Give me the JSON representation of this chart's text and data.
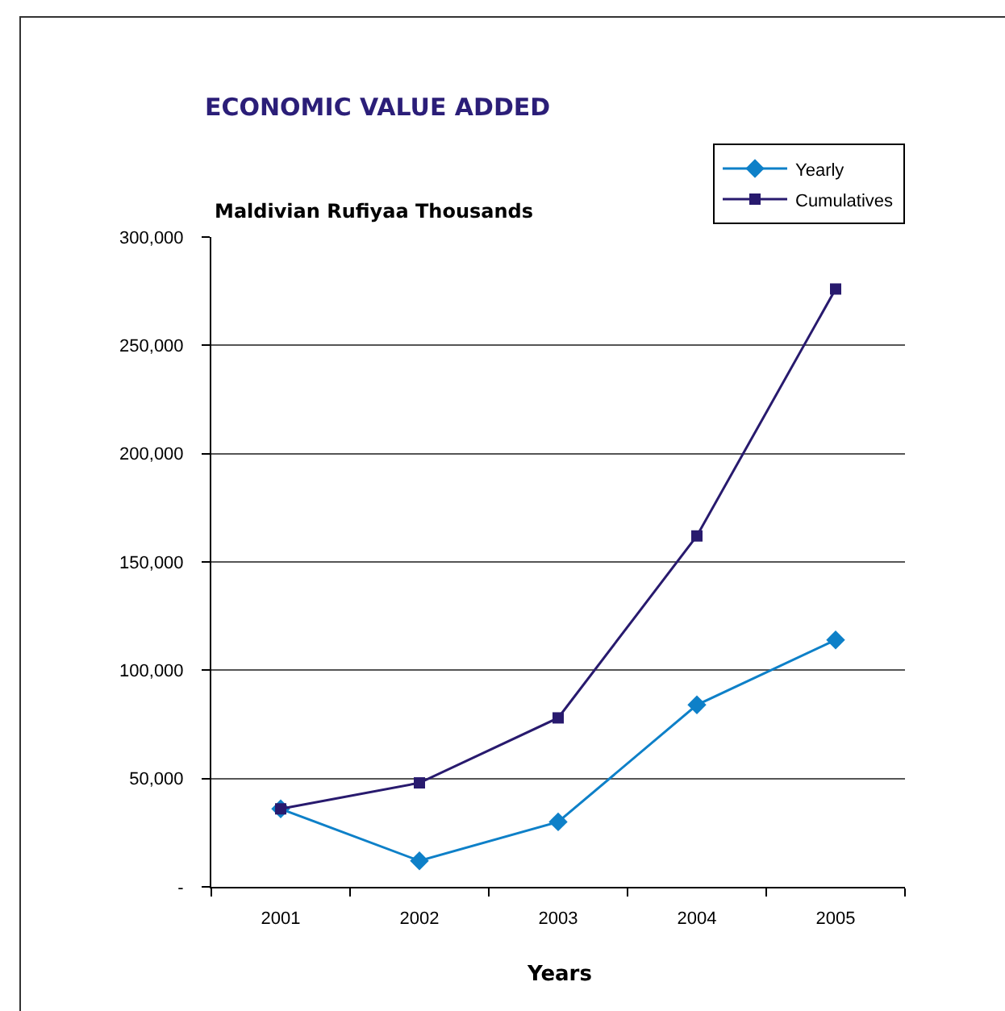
{
  "chart_data": {
    "type": "line",
    "title": "ECONOMIC VALUE ADDED",
    "ylabel": "Maldivian Rufiyaa Thousands",
    "xlabel": "Years",
    "categories": [
      "2001",
      "2002",
      "2003",
      "2004",
      "2005"
    ],
    "series": [
      {
        "name": "Yearly",
        "color": "#0e80c8",
        "marker": "diamond",
        "values": [
          36000,
          12000,
          30000,
          84000,
          114000
        ]
      },
      {
        "name": "Cumulatives",
        "color": "#281a6e",
        "marker": "square",
        "values": [
          36000,
          48000,
          78000,
          162000,
          276000
        ]
      }
    ],
    "ylim": [
      0,
      300000
    ],
    "yticks": [
      {
        "value": 0,
        "label": "-"
      },
      {
        "value": 50000,
        "label": "50,000"
      },
      {
        "value": 100000,
        "label": "100,000"
      },
      {
        "value": 150000,
        "label": "150,000"
      },
      {
        "value": 200000,
        "label": "200,000"
      },
      {
        "value": 250000,
        "label": "250,000"
      },
      {
        "value": 300000,
        "label": "300,000"
      }
    ],
    "grid": "y",
    "legend": "top right",
    "line_style": "solid"
  }
}
